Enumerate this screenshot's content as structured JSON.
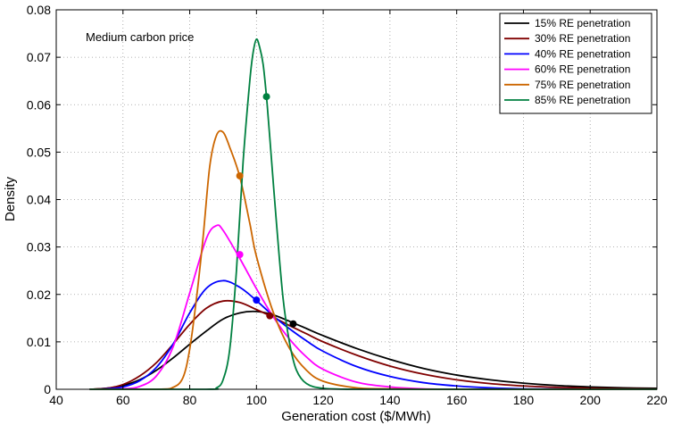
{
  "chart_data": {
    "type": "line",
    "title": "",
    "annotation": "Medium carbon price",
    "xlabel": "Generation cost ($/MWh)",
    "ylabel": "Density",
    "xlim": [
      40,
      220
    ],
    "ylim": [
      0,
      0.08
    ],
    "xticks": [
      40,
      60,
      80,
      100,
      120,
      140,
      160,
      180,
      200,
      220
    ],
    "yticks": [
      0,
      0.01,
      0.02,
      0.03,
      0.04,
      0.05,
      0.06,
      0.07,
      0.08
    ],
    "ytick_labels": [
      "0",
      "0.01",
      "0.02",
      "0.03",
      "0.04",
      "0.05",
      "0.06",
      "0.07",
      "0.08"
    ],
    "grid": true,
    "legend_position": "top-right",
    "series": [
      {
        "name": "15% RE penetration",
        "color": "#000000",
        "x": [
          50,
          55,
          60,
          65,
          70,
          75,
          80,
          85,
          90,
          95,
          100,
          105,
          110,
          115,
          120,
          130,
          140,
          150,
          160,
          170,
          180,
          190,
          200,
          210,
          220
        ],
        "y": [
          0,
          0.0002,
          0.0008,
          0.002,
          0.004,
          0.0066,
          0.0095,
          0.0123,
          0.0148,
          0.0161,
          0.0164,
          0.0157,
          0.0143,
          0.0128,
          0.0113,
          0.0086,
          0.0063,
          0.0044,
          0.003,
          0.002,
          0.0013,
          0.0008,
          0.0005,
          0.0003,
          0.0002
        ],
        "marker": {
          "x": 111,
          "y": 0.0138
        }
      },
      {
        "name": "30% RE penetration",
        "color": "#800000",
        "x": [
          50,
          55,
          60,
          65,
          70,
          75,
          80,
          85,
          90,
          95,
          100,
          105,
          110,
          115,
          120,
          130,
          140,
          150,
          160,
          170,
          180,
          190,
          200,
          210,
          220
        ],
        "y": [
          0,
          0.0002,
          0.001,
          0.0028,
          0.0056,
          0.0095,
          0.0137,
          0.0171,
          0.0186,
          0.0183,
          0.0168,
          0.0152,
          0.0134,
          0.0117,
          0.01,
          0.0072,
          0.0049,
          0.0032,
          0.002,
          0.0012,
          0.0007,
          0.0004,
          0.0002,
          0.0001,
          5e-05
        ],
        "marker": {
          "x": 104,
          "y": 0.0155
        }
      },
      {
        "name": "40% RE penetration",
        "color": "#0000ff",
        "x": [
          50,
          55,
          60,
          65,
          70,
          75,
          80,
          85,
          90,
          95,
          100,
          105,
          110,
          115,
          120,
          130,
          140,
          150,
          160,
          170,
          180,
          190,
          200,
          210,
          220
        ],
        "y": [
          0,
          0.0001,
          0.0005,
          0.0018,
          0.0046,
          0.0095,
          0.0161,
          0.0213,
          0.0229,
          0.0215,
          0.0187,
          0.0155,
          0.0127,
          0.0102,
          0.008,
          0.0048,
          0.0027,
          0.0014,
          0.0007,
          0.0003,
          0.0001,
          5e-05,
          0,
          0,
          0
        ],
        "marker": {
          "x": 100,
          "y": 0.0188
        }
      },
      {
        "name": "60% RE penetration",
        "color": "#ff00ff",
        "x": [
          50,
          60,
          65,
          70,
          75,
          80,
          85,
          88,
          90,
          95,
          100,
          105,
          110,
          115,
          120,
          130,
          140,
          150,
          160,
          170,
          180,
          190,
          200,
          210,
          220
        ],
        "y": [
          0,
          0.0001,
          0.0006,
          0.0028,
          0.0089,
          0.0203,
          0.0318,
          0.0345,
          0.0335,
          0.0276,
          0.0212,
          0.0153,
          0.0105,
          0.0068,
          0.0042,
          0.0015,
          0.0005,
          0.0001,
          0,
          0,
          0,
          0,
          0,
          0,
          0
        ],
        "marker": {
          "x": 95,
          "y": 0.0284
        }
      },
      {
        "name": "75% RE penetration",
        "color": "#cc6600",
        "x": [
          50,
          70,
          75,
          78,
          80,
          82,
          84,
          86,
          88,
          90,
          92,
          95,
          98,
          100,
          105,
          110,
          115,
          120,
          130,
          140,
          150,
          160,
          180,
          200,
          220
        ],
        "y": [
          0,
          0,
          0.0004,
          0.0025,
          0.0085,
          0.019,
          0.032,
          0.047,
          0.0535,
          0.0542,
          0.051,
          0.0448,
          0.035,
          0.028,
          0.0163,
          0.0085,
          0.004,
          0.0017,
          0.0003,
          0.0001,
          0,
          0,
          0,
          0,
          0
        ],
        "marker": {
          "x": 95,
          "y": 0.045
        }
      },
      {
        "name": "85% RE penetration",
        "color": "#008040",
        "x": [
          50,
          85,
          88,
          90,
          92,
          94,
          96,
          98,
          99,
          100,
          101,
          102,
          103,
          104,
          106,
          108,
          110,
          112,
          115,
          120,
          130,
          160,
          190,
          220
        ],
        "y": [
          0,
          0,
          0.0003,
          0.002,
          0.0085,
          0.025,
          0.048,
          0.065,
          0.071,
          0.0738,
          0.072,
          0.0685,
          0.0617,
          0.053,
          0.035,
          0.019,
          0.0095,
          0.004,
          0.0012,
          0.0002,
          0,
          0,
          0,
          0
        ],
        "marker": {
          "x": 103,
          "y": 0.0617
        }
      }
    ]
  }
}
